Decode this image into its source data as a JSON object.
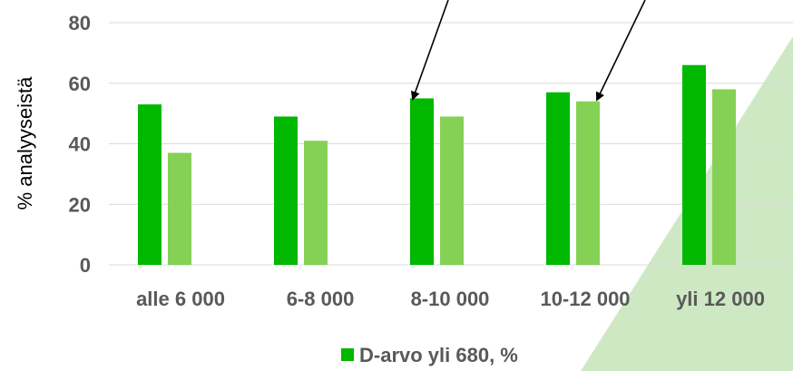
{
  "chart_data": {
    "type": "bar",
    "ylabel": "% analyyseistä",
    "ylim": [
      0,
      80
    ],
    "yticks": [
      "0",
      "20",
      "40",
      "60",
      "80"
    ],
    "grid": true,
    "categories": [
      "alle 6 000",
      "6-8 000",
      "8-10 000",
      "10-12 000",
      "yli 12 000"
    ],
    "series": [
      {
        "name": "",
        "color": "#00b800",
        "values": [
          53,
          49,
          55,
          57,
          66
        ]
      },
      {
        "name": "D-arvo yli 680, %",
        "color": "#85d155",
        "values": [
          37,
          41,
          49,
          54,
          58
        ]
      }
    ],
    "legend": {
      "position": "bottom",
      "label": "D-arvo yli 680, %",
      "color": "#00b800"
    },
    "annotations": [
      {
        "type": "arrow",
        "points_to": "8-10 000 first bar"
      },
      {
        "type": "arrow",
        "points_to": "10-12 000 second bar"
      }
    ]
  }
}
